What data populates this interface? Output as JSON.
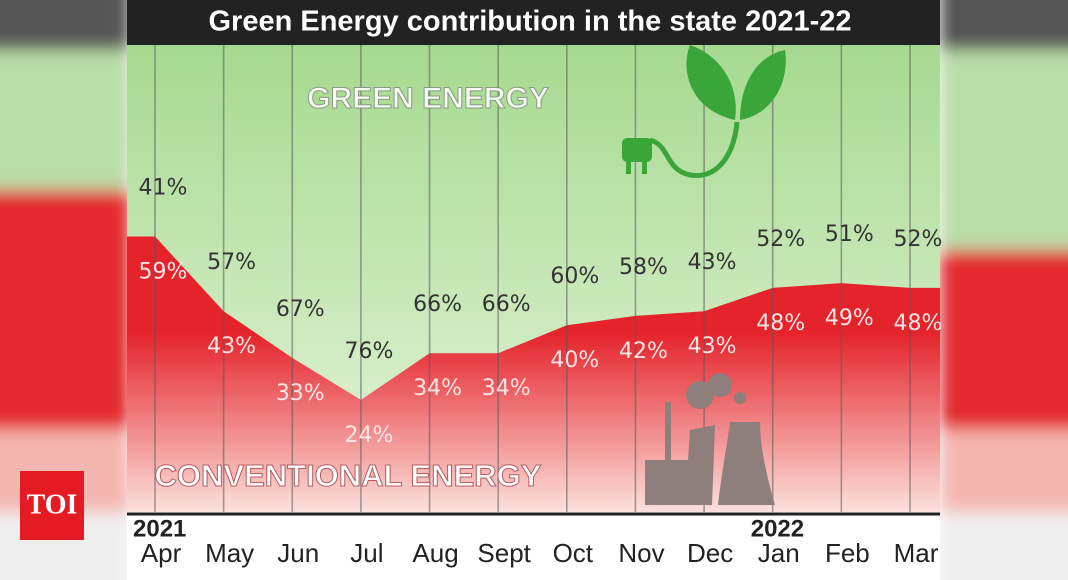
{
  "chart_data": {
    "type": "stacked_area",
    "title": "Green Energy contribution in the state 2021-22",
    "categories": [
      "Apr",
      "May",
      "Jun",
      "Jul",
      "Aug",
      "Sept",
      "Oct",
      "Nov",
      "Dec",
      "Jan",
      "Feb",
      "Mar"
    ],
    "year_labels": [
      {
        "index": 0,
        "label": "2021"
      },
      {
        "index": 9,
        "label": "2022"
      }
    ],
    "series": [
      {
        "name": "GREEN ENERGY",
        "color": "#a6d98f",
        "values": [
          41,
          57,
          67,
          76,
          66,
          66,
          60,
          58,
          43,
          52,
          51,
          52
        ],
        "value_labels": [
          "41%",
          "57%",
          "67%",
          "76%",
          "66%",
          "66%",
          "60%",
          "58%",
          "43%",
          "52%",
          "51%",
          "52%"
        ]
      },
      {
        "name": "CONVENTIONAL ENERGY",
        "color": "#e5232b",
        "values": [
          59,
          43,
          33,
          24,
          34,
          34,
          40,
          42,
          43,
          48,
          49,
          48
        ],
        "value_labels": [
          "59%",
          "43%",
          "33%",
          "24%",
          "34%",
          "34%",
          "40%",
          "42%",
          "43%",
          "48%",
          "49%",
          "48%"
        ]
      }
    ]
  },
  "logo": "TOI"
}
